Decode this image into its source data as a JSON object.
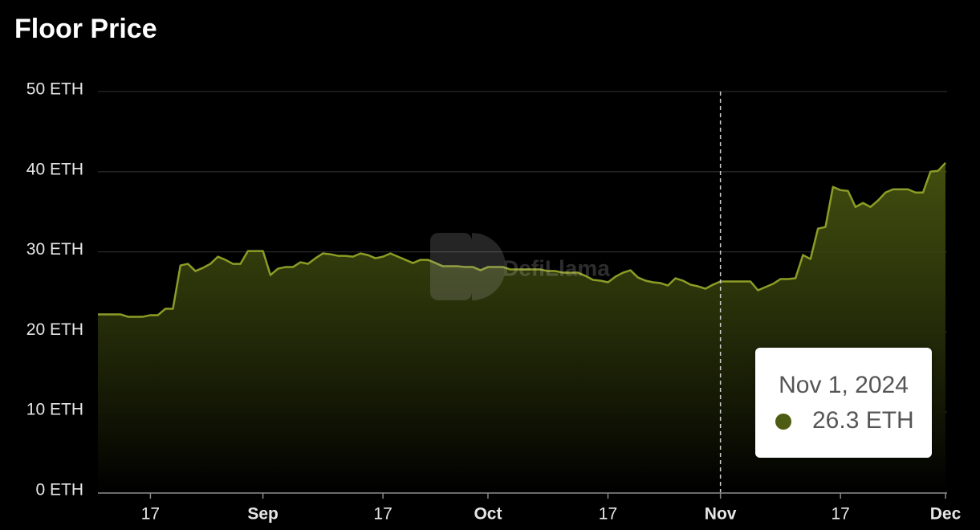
{
  "chart_data": {
    "type": "area",
    "title": "Floor Price",
    "watermark": "DefiLlama",
    "color": "#8d9c26",
    "fill_color": "#4d5c12",
    "grid": true,
    "x": [
      "2024-08-10",
      "2024-08-11",
      "2024-08-12",
      "2024-08-13",
      "2024-08-14",
      "2024-08-15",
      "2024-08-16",
      "2024-08-17",
      "2024-08-18",
      "2024-08-19",
      "2024-08-20",
      "2024-08-21",
      "2024-08-22",
      "2024-08-23",
      "2024-08-24",
      "2024-08-25",
      "2024-08-26",
      "2024-08-27",
      "2024-08-28",
      "2024-08-29",
      "2024-08-30",
      "2024-08-31",
      "2024-09-01",
      "2024-09-02",
      "2024-09-03",
      "2024-09-04",
      "2024-09-05",
      "2024-09-06",
      "2024-09-07",
      "2024-09-08",
      "2024-09-09",
      "2024-09-10",
      "2024-09-11",
      "2024-09-12",
      "2024-09-13",
      "2024-09-14",
      "2024-09-15",
      "2024-09-16",
      "2024-09-17",
      "2024-09-18",
      "2024-09-19",
      "2024-09-20",
      "2024-09-21",
      "2024-09-22",
      "2024-09-23",
      "2024-09-24",
      "2024-09-25",
      "2024-09-26",
      "2024-09-27",
      "2024-09-28",
      "2024-09-29",
      "2024-09-30",
      "2024-10-01",
      "2024-10-02",
      "2024-10-03",
      "2024-10-04",
      "2024-10-05",
      "2024-10-06",
      "2024-10-07",
      "2024-10-08",
      "2024-10-09",
      "2024-10-10",
      "2024-10-11",
      "2024-10-12",
      "2024-10-13",
      "2024-10-14",
      "2024-10-15",
      "2024-10-16",
      "2024-10-17",
      "2024-10-18",
      "2024-10-19",
      "2024-10-20",
      "2024-10-21",
      "2024-10-22",
      "2024-10-23",
      "2024-10-24",
      "2024-10-25",
      "2024-10-26",
      "2024-10-27",
      "2024-10-28",
      "2024-10-29",
      "2024-10-30",
      "2024-10-31",
      "2024-11-01",
      "2024-11-02",
      "2024-11-03",
      "2024-11-04",
      "2024-11-05",
      "2024-11-06",
      "2024-11-07",
      "2024-11-08",
      "2024-11-09",
      "2024-11-10",
      "2024-11-11",
      "2024-11-12",
      "2024-11-13",
      "2024-11-14",
      "2024-11-15",
      "2024-11-16",
      "2024-11-17",
      "2024-11-18",
      "2024-11-19",
      "2024-11-20",
      "2024-11-21",
      "2024-11-22",
      "2024-11-23",
      "2024-11-24",
      "2024-11-25",
      "2024-11-26",
      "2024-11-27",
      "2024-11-28",
      "2024-11-29",
      "2024-11-30",
      "2024-12-01"
    ],
    "values": [
      22.2,
      22.2,
      22.2,
      22.2,
      21.9,
      21.9,
      21.9,
      22.1,
      22.1,
      22.9,
      22.9,
      28.3,
      28.5,
      27.6,
      28.0,
      28.5,
      29.4,
      29.0,
      28.5,
      28.5,
      30.1,
      30.1,
      30.1,
      27.1,
      27.9,
      28.1,
      28.1,
      28.7,
      28.5,
      29.2,
      29.8,
      29.7,
      29.5,
      29.5,
      29.4,
      29.8,
      29.6,
      29.2,
      29.4,
      29.8,
      29.4,
      29.0,
      28.6,
      29.0,
      29.0,
      28.6,
      28.2,
      28.2,
      28.2,
      28.1,
      28.1,
      27.7,
      28.1,
      28.1,
      28.1,
      27.8,
      27.8,
      27.8,
      27.8,
      27.8,
      27.6,
      27.6,
      27.4,
      27.4,
      27.4,
      27.0,
      26.5,
      26.4,
      26.2,
      26.9,
      27.4,
      27.7,
      26.8,
      26.4,
      26.2,
      26.1,
      25.8,
      26.7,
      26.4,
      25.9,
      25.7,
      25.4,
      25.9,
      26.3,
      26.3,
      26.3,
      26.3,
      26.3,
      25.2,
      25.6,
      26.0,
      26.6,
      26.6,
      26.7,
      29.6,
      29.1,
      32.9,
      33.1,
      38.1,
      37.7,
      37.6,
      35.6,
      36.1,
      35.6,
      36.4,
      37.4,
      37.8,
      37.8,
      37.8,
      37.4,
      37.4,
      40.0,
      40.1,
      41.1
    ],
    "xlim": [
      "2024-08-10",
      "2024-12-01"
    ],
    "xticks": [
      {
        "value": "2024-08-17",
        "label": "17"
      },
      {
        "value": "2024-09-01",
        "label": "Sep"
      },
      {
        "value": "2024-09-17",
        "label": "17"
      },
      {
        "value": "2024-10-01",
        "label": "Oct"
      },
      {
        "value": "2024-10-17",
        "label": "17"
      },
      {
        "value": "2024-11-01",
        "label": "Nov"
      },
      {
        "value": "2024-11-17",
        "label": "17"
      },
      {
        "value": "2024-12-01",
        "label": "Dec"
      }
    ],
    "ylim": [
      0,
      50
    ],
    "yticks": [
      {
        "value": 0,
        "label": "0 ETH"
      },
      {
        "value": 10,
        "label": "10 ETH"
      },
      {
        "value": 20,
        "label": "20 ETH"
      },
      {
        "value": 30,
        "label": "30 ETH"
      },
      {
        "value": 40,
        "label": "40 ETH"
      },
      {
        "value": 50,
        "label": "50 ETH"
      }
    ],
    "tooltip": {
      "x": "Nov 1, 2024",
      "value_label": "26.3 ETH"
    }
  }
}
